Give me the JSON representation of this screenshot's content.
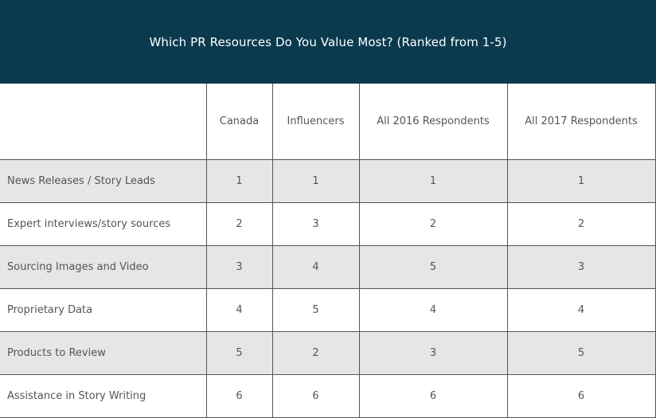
{
  "chart_data": {
    "type": "table",
    "title": "Which PR Resources Do You Value Most? (Ranked from 1-5)",
    "columns": [
      "Canada",
      "Influencers",
      "All 2016 Respondents",
      "All 2017 Respondents"
    ],
    "rows": [
      {
        "label": "News Releases / Story Leads",
        "values": [
          "1",
          "1",
          "1",
          "1"
        ]
      },
      {
        "label": "Expert interviews/story sources",
        "values": [
          "2",
          "3",
          "2",
          "2"
        ]
      },
      {
        "label": "Sourcing Images and Video",
        "values": [
          "3",
          "4",
          "5",
          "3"
        ]
      },
      {
        "label": "Proprietary Data",
        "values": [
          "4",
          "5",
          "4",
          "4"
        ]
      },
      {
        "label": "Products to Review",
        "values": [
          "5",
          "2",
          "3",
          "5"
        ]
      },
      {
        "label": "Assistance in Story Writing",
        "values": [
          "6",
          "6",
          "6",
          "6"
        ]
      }
    ]
  },
  "colors": {
    "header_background": "#0b3a4f",
    "title_text": "#ffffff",
    "shaded_row": "#e6e6e6",
    "plain_row": "#ffffff",
    "body_text": "#555555",
    "grid_lines": "#555555"
  }
}
